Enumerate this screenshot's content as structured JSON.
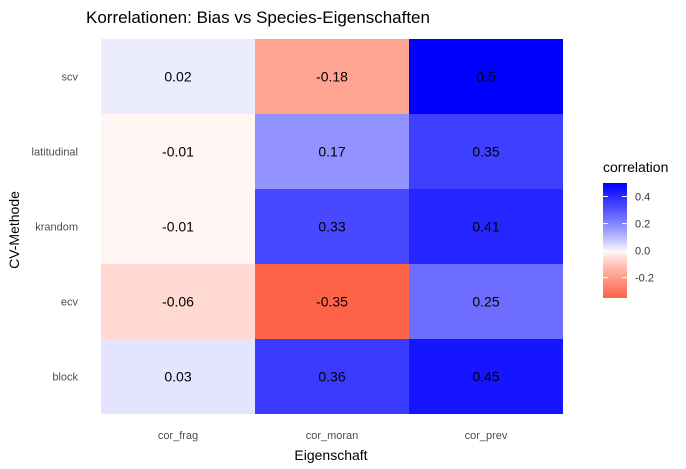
{
  "chart_data": {
    "type": "heatmap",
    "title": "Korrelationen: Bias vs Species-Eigenschaften",
    "xlabel": "Eigenschaft",
    "ylabel": "CV-Methode",
    "x_categories": [
      "cor_frag",
      "cor_moran",
      "cor_prev"
    ],
    "y_categories": [
      "scv",
      "latitudinal",
      "krandom",
      "ecv",
      "block"
    ],
    "values": [
      [
        0.02,
        -0.18,
        0.5
      ],
      [
        -0.01,
        0.17,
        0.35
      ],
      [
        -0.01,
        0.33,
        0.41
      ],
      [
        -0.06,
        -0.35,
        0.25
      ],
      [
        0.03,
        0.36,
        0.45
      ]
    ],
    "labels": [
      [
        "0.02",
        "-0.18",
        "0.5"
      ],
      [
        "-0.01",
        "0.17",
        "0.35"
      ],
      [
        "-0.01",
        "0.33",
        "0.41"
      ],
      [
        "-0.06",
        "-0.35",
        "0.25"
      ],
      [
        "0.03",
        "0.36",
        "0.45"
      ]
    ],
    "color_scale": {
      "low": "#ff6347",
      "mid": "#ffffff",
      "high": "#0000ff",
      "limits": [
        -0.35,
        0.5
      ]
    },
    "legend": {
      "title": "correlation",
      "ticks": [
        0.4,
        0.2,
        0.0,
        -0.2
      ],
      "tick_labels": [
        "0.4",
        "0.2",
        "0.0",
        "-0.2"
      ],
      "placement": "right"
    },
    "grid": true
  }
}
